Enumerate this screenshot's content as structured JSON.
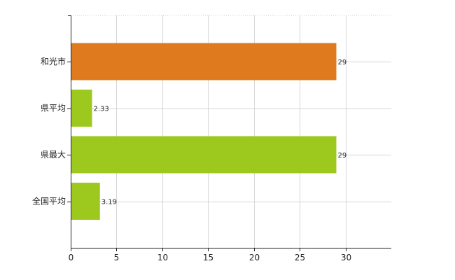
{
  "chart_data": {
    "type": "bar",
    "orientation": "horizontal",
    "categories": [
      "和光市",
      "県平均",
      "県最大",
      "全国平均"
    ],
    "values": [
      29,
      2.33,
      29,
      3.19
    ],
    "data_labels": [
      "29",
      "2.33",
      "29",
      "3.19"
    ],
    "bar_colors": [
      "#e07a1e",
      "#9dc81e",
      "#9dc81e",
      "#9dc81e"
    ],
    "x_ticks": [
      0,
      5,
      10,
      15,
      20,
      25,
      30
    ],
    "xlim": [
      0,
      35
    ],
    "grid": true,
    "title": "",
    "xlabel": "",
    "ylabel": ""
  }
}
